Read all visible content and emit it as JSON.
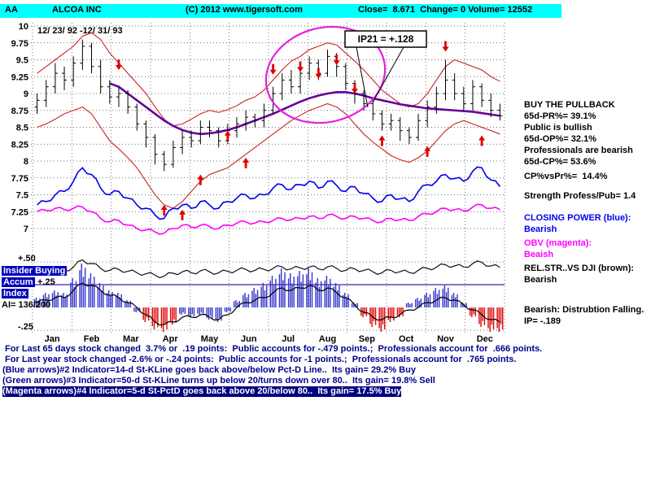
{
  "header": {
    "symbol": "AA",
    "name": "ALCOA INC",
    "copyright": "(C) 2012 www.tigersoft.com",
    "quote": "Close=  8.671  Change= 0 Volume= 12552"
  },
  "chart_data": {
    "type": "candlestick+line",
    "title": "ALCOA INC daily chart with Closing Power, OBV, Rel.Str. and Insider Buying Accumulation Index",
    "date_range": "12/ 23/ 92 -12/ 31/ 93",
    "y_ticks": [
      10,
      9.75,
      9.5,
      9.25,
      9,
      8.75,
      8.5,
      8.25,
      8,
      7.75,
      7.5,
      7.25,
      7
    ],
    "ylim": [
      7,
      10
    ],
    "months": [
      "Jan",
      "Feb",
      "Mar",
      "Apr",
      "May",
      "Jun",
      "Jul",
      "Aug",
      "Sep",
      "Oct",
      "Nov",
      "Dec"
    ],
    "annotation": {
      "label": "IP21 = +.128"
    },
    "ohlc": [
      [
        8.8,
        9.0,
        8.7,
        8.9
      ],
      [
        8.9,
        9.2,
        8.8,
        9.1
      ],
      [
        9.1,
        9.45,
        9.0,
        9.3
      ],
      [
        9.3,
        9.4,
        9.05,
        9.2
      ],
      [
        9.2,
        9.55,
        9.1,
        9.45
      ],
      [
        9.45,
        9.8,
        9.35,
        9.7
      ],
      [
        9.7,
        9.75,
        9.3,
        9.4
      ],
      [
        9.4,
        9.5,
        9.0,
        9.1
      ],
      [
        9.1,
        9.2,
        8.85,
        8.95
      ],
      [
        8.95,
        9.1,
        8.8,
        9.0
      ],
      [
        9.0,
        9.05,
        8.7,
        8.8
      ],
      [
        8.8,
        8.85,
        8.45,
        8.55
      ],
      [
        8.55,
        8.6,
        8.2,
        8.35
      ],
      [
        8.35,
        8.4,
        7.95,
        8.1
      ],
      [
        8.1,
        8.15,
        7.85,
        7.95
      ],
      [
        7.95,
        8.3,
        7.9,
        8.2
      ],
      [
        8.2,
        8.45,
        8.1,
        8.35
      ],
      [
        8.35,
        8.45,
        8.2,
        8.3
      ],
      [
        8.3,
        8.6,
        8.25,
        8.5
      ],
      [
        8.5,
        8.6,
        8.35,
        8.45
      ],
      [
        8.45,
        8.5,
        8.2,
        8.3
      ],
      [
        8.3,
        8.55,
        8.25,
        8.45
      ],
      [
        8.45,
        8.65,
        8.35,
        8.55
      ],
      [
        8.55,
        8.75,
        8.45,
        8.65
      ],
      [
        8.65,
        8.7,
        8.5,
        8.6
      ],
      [
        8.6,
        8.85,
        8.5,
        8.75
      ],
      [
        8.75,
        9.1,
        8.7,
        9.0
      ],
      [
        9.0,
        9.3,
        8.9,
        9.2
      ],
      [
        9.2,
        9.35,
        9.0,
        9.1
      ],
      [
        9.1,
        9.4,
        9.0,
        9.3
      ],
      [
        9.3,
        9.55,
        9.2,
        9.45
      ],
      [
        9.45,
        9.5,
        9.2,
        9.3
      ],
      [
        9.3,
        9.65,
        9.25,
        9.55
      ],
      [
        9.55,
        9.6,
        9.25,
        9.4
      ],
      [
        9.4,
        9.45,
        9.05,
        9.15
      ],
      [
        9.15,
        9.2,
        8.85,
        9.0
      ],
      [
        9.0,
        9.05,
        8.75,
        8.85
      ],
      [
        8.85,
        8.9,
        8.6,
        8.7
      ],
      [
        8.7,
        8.75,
        8.45,
        8.55
      ],
      [
        8.55,
        8.7,
        8.45,
        8.6
      ],
      [
        8.6,
        8.65,
        8.3,
        8.45
      ],
      [
        8.45,
        8.5,
        8.25,
        8.35
      ],
      [
        8.35,
        8.7,
        8.3,
        8.6
      ],
      [
        8.6,
        8.9,
        8.5,
        8.8
      ],
      [
        8.8,
        9.1,
        8.7,
        9.0
      ],
      [
        9.0,
        9.5,
        8.9,
        9.2
      ],
      [
        9.2,
        9.3,
        8.9,
        9.0
      ],
      [
        9.0,
        9.1,
        8.75,
        8.85
      ],
      [
        8.85,
        9.2,
        8.75,
        9.1
      ],
      [
        9.1,
        9.15,
        8.8,
        8.9
      ],
      [
        8.9,
        9.0,
        8.65,
        8.75
      ],
      [
        8.75,
        8.85,
        8.6,
        8.67
      ]
    ],
    "upper_band": [
      9.3,
      9.4,
      9.5,
      9.6,
      9.7,
      9.85,
      9.9,
      9.8,
      9.6,
      9.45,
      9.3,
      9.15,
      9.0,
      8.8,
      8.62,
      8.52,
      8.55,
      8.62,
      8.7,
      8.75,
      8.72,
      8.76,
      8.82,
      8.9,
      8.95,
      9.05,
      9.2,
      9.35,
      9.48,
      9.55,
      9.65,
      9.7,
      9.75,
      9.72,
      9.6,
      9.48,
      9.35,
      9.2,
      9.05,
      8.95,
      8.85,
      8.8,
      8.85,
      9.0,
      9.2,
      9.4,
      9.5,
      9.45,
      9.4,
      9.35,
      9.25,
      9.18
    ],
    "lower_band": [
      8.5,
      8.55,
      8.62,
      8.7,
      8.75,
      8.8,
      8.7,
      8.5,
      8.3,
      8.18,
      8.05,
      7.9,
      7.7,
      7.5,
      7.35,
      7.3,
      7.4,
      7.55,
      7.7,
      7.8,
      7.85,
      7.9,
      8.0,
      8.1,
      8.2,
      8.3,
      8.4,
      8.5,
      8.6,
      8.68,
      8.75,
      8.8,
      8.85,
      8.8,
      8.7,
      8.55,
      8.4,
      8.28,
      8.18,
      8.08,
      8.02,
      7.98,
      8.05,
      8.15,
      8.3,
      8.45,
      8.55,
      8.6,
      8.55,
      8.5,
      8.45,
      8.4
    ],
    "ma": [
      null,
      null,
      null,
      null,
      null,
      null,
      null,
      null,
      9.15,
      9.1,
      9.0,
      8.9,
      8.8,
      8.7,
      8.6,
      8.52,
      8.46,
      8.42,
      8.4,
      8.41,
      8.43,
      8.46,
      8.5,
      8.55,
      8.6,
      8.65,
      8.7,
      8.76,
      8.82,
      8.88,
      8.93,
      8.97,
      9.0,
      9.02,
      9.02,
      9.0,
      8.97,
      8.93,
      8.9,
      8.87,
      8.84,
      8.82,
      8.8,
      8.78,
      8.77,
      8.76,
      8.75,
      8.74,
      8.73,
      8.71,
      8.69,
      8.67
    ],
    "closing_power": [
      7.35,
      7.4,
      7.5,
      7.55,
      7.7,
      7.9,
      7.8,
      7.6,
      7.5,
      7.55,
      7.45,
      7.35,
      7.3,
      7.2,
      7.15,
      7.3,
      7.35,
      7.3,
      7.4,
      7.35,
      7.3,
      7.4,
      7.45,
      7.5,
      7.45,
      7.5,
      7.6,
      7.65,
      7.58,
      7.65,
      7.7,
      7.6,
      7.7,
      7.64,
      7.55,
      7.62,
      7.52,
      7.45,
      7.4,
      7.5,
      7.44,
      7.4,
      7.55,
      7.65,
      7.7,
      7.8,
      7.74,
      7.7,
      7.85,
      7.9,
      7.72,
      7.62
    ],
    "obv": [
      7.25,
      7.27,
      7.3,
      7.28,
      7.3,
      7.32,
      7.25,
      7.15,
      7.1,
      7.12,
      7.05,
      7.0,
      6.98,
      6.95,
      6.93,
      7.0,
      7.05,
      7.02,
      7.05,
      7.03,
      7.0,
      7.05,
      7.08,
      7.1,
      7.08,
      7.1,
      7.12,
      7.15,
      7.13,
      7.15,
      7.18,
      7.15,
      7.2,
      7.18,
      7.15,
      7.18,
      7.15,
      7.12,
      7.1,
      7.15,
      7.13,
      7.12,
      7.18,
      7.22,
      7.25,
      7.3,
      7.28,
      7.26,
      7.32,
      7.35,
      7.3,
      7.28
    ],
    "rel_str": [
      0.45,
      0.5,
      0.55,
      0.52,
      0.65,
      0.95,
      0.8,
      0.6,
      0.52,
      0.56,
      0.48,
      0.42,
      0.38,
      0.32,
      0.28,
      0.4,
      0.46,
      0.42,
      0.5,
      0.46,
      0.42,
      0.48,
      0.52,
      0.56,
      0.52,
      0.56,
      0.6,
      0.66,
      0.58,
      0.62,
      0.66,
      0.58,
      0.66,
      0.6,
      0.52,
      0.58,
      0.52,
      0.46,
      0.42,
      0.52,
      0.47,
      0.43,
      0.52,
      0.6,
      0.65,
      0.75,
      0.7,
      0.66,
      0.8,
      0.85,
      0.7,
      0.64
    ],
    "insider": {
      "values": [
        0.2,
        0.3,
        0.35,
        0.3,
        0.6,
        0.9,
        0.7,
        0.5,
        0.35,
        0.3,
        0.15,
        -0.1,
        -0.3,
        -0.45,
        -0.5,
        -0.35,
        -0.15,
        -0.2,
        -0.15,
        -0.25,
        -0.3,
        -0.1,
        0.15,
        0.3,
        0.4,
        0.5,
        0.65,
        0.8,
        0.7,
        0.75,
        0.8,
        0.6,
        0.65,
        0.5,
        0.3,
        0.1,
        -0.2,
        -0.4,
        -0.5,
        -0.3,
        -0.2,
        0.1,
        0.2,
        0.3,
        0.4,
        0.45,
        0.3,
        0.1,
        -0.2,
        -0.4,
        -0.5,
        -0.5
      ],
      "colors": [
        "b",
        "b",
        "b",
        "b",
        "b",
        "b",
        "b",
        "b",
        "b",
        "b",
        "b",
        "b",
        "r",
        "r",
        "r",
        "r",
        "b",
        "b",
        "b",
        "b",
        "b",
        "b",
        "b",
        "b",
        "b",
        "b",
        "b",
        "b",
        "b",
        "b",
        "b",
        "b",
        "b",
        "b",
        "b",
        "b",
        "r",
        "r",
        "r",
        "r",
        "r",
        "b",
        "b",
        "b",
        "b",
        "b",
        "b",
        "b",
        "r",
        "r",
        "r",
        "r"
      ],
      "accum": [
        0.1,
        0.15,
        0.2,
        0.2,
        0.35,
        0.5,
        0.45,
        0.35,
        0.25,
        0.2,
        0.1,
        0.0,
        -0.15,
        -0.3,
        -0.35,
        -0.3,
        -0.2,
        -0.2,
        -0.15,
        -0.2,
        -0.25,
        -0.15,
        0.0,
        0.1,
        0.15,
        0.2,
        0.3,
        0.4,
        0.35,
        0.4,
        0.45,
        0.35,
        0.4,
        0.3,
        0.2,
        0.05,
        -0.1,
        -0.2,
        -0.25,
        -0.2,
        -0.15,
        -0.05,
        0.0,
        0.1,
        0.15,
        0.2,
        0.15,
        0.05,
        -0.05,
        -0.15,
        -0.25,
        -0.3
      ],
      "label_top": "+.50",
      "label_mid": "+.25",
      "label_bot": "-.25",
      "panel_labels": [
        "Insider Buying",
        "Accum",
        "Index"
      ],
      "ai_label": "AI= 136/200"
    },
    "arrows": [
      [
        9,
        9.35,
        "d"
      ],
      [
        14,
        7.35,
        "u"
      ],
      [
        16,
        7.28,
        "u"
      ],
      [
        18,
        7.8,
        "u"
      ],
      [
        21,
        8.45,
        "u"
      ],
      [
        23,
        8.05,
        "u"
      ],
      [
        26,
        9.28,
        "d"
      ],
      [
        29,
        9.32,
        "d"
      ],
      [
        31,
        9.22,
        "d"
      ],
      [
        33,
        9.42,
        "d"
      ],
      [
        35,
        9.0,
        "d"
      ],
      [
        38,
        8.38,
        "u"
      ],
      [
        43,
        8.22,
        "u"
      ],
      [
        45,
        9.62,
        "d"
      ],
      [
        49,
        8.38,
        "u"
      ]
    ]
  },
  "right_panel": {
    "lines": [
      {
        "text": "BUY THE PULLBACK"
      },
      {
        "text": "65d-PR%= 39.1%"
      },
      {
        "text": "Public is bullish"
      },
      {
        "text": "65d-OP%= 32.1%"
      },
      {
        "text": "Professionals are bearish"
      },
      {
        "text": "65d-CP%= 53.6%"
      },
      {
        "text": "CP%vsPr%=  14.4%"
      },
      {
        "text": "Strength Profess/Pub= 1.4"
      },
      {
        "text": "CLOSING POWER (blue):"
      },
      {
        "text": "Bearish"
      },
      {
        "text": "OBV (magenta):"
      },
      {
        "text": "Beaish"
      },
      {
        "text": "REL.STR..VS DJI (brown):"
      },
      {
        "text": "Bearish"
      },
      {
        "text": "Bearish: Distrubtion Falling."
      },
      {
        "text": "IP= -.189"
      }
    ]
  },
  "bottom_lines": [
    " For Last 65 days stock changed  3.7% or  .19 points:  Public accounts for -.479 points.;  Professionals account for  .666 points.",
    " For Last year stock changed -2.6% or -.24 points:  Public accounts for -1 points.;  Professionals account for  .765 points.",
    "(Blue arrows)#2 Indicator=14-d St-KLine goes back above/below Pct-D Line..  Its gain= 29.2% Buy",
    "(Green arrows)#3 Indicator=50-d St-KLine turns up below 20/turns down over 80..  Its gain= 19.8% Sell",
    "(Magenta arrows)#4 Indicator=5-d St-PctD goes back above 20/below 80..  Its gain= 17.5% Buy"
  ],
  "colors": {
    "header_bg": "#00ffff",
    "band": "#cc2222",
    "ma": "#660099",
    "cp": "#0000ee",
    "obv": "#ff00ff",
    "rel": "#111111",
    "hist_pos": "#3333cc",
    "hist_neg": "#dd0000",
    "arrow": "#dd0000",
    "ellipse": "#e020e0",
    "ref_line": "#6040c0",
    "navy_text": "#00008b"
  }
}
